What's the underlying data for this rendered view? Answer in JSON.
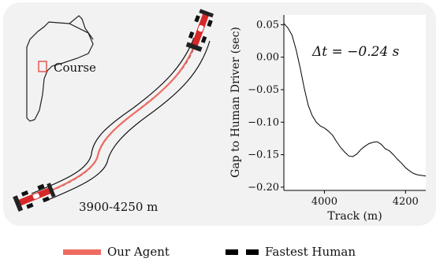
{
  "track_panel": {
    "course_label": "Course",
    "segment_label": "3900-4250 m"
  },
  "legend": {
    "agent_label": "Our Agent",
    "human_label": "Fastest Human",
    "agent_color": "#ef6b62",
    "human_color": "#000000"
  },
  "chart_data": {
    "type": "line",
    "xlabel": "Track (m)",
    "ylabel": "Gap to Human Driver (sec)",
    "annotation": "Δt = −0.24 s",
    "xlim": [
      3900,
      4250
    ],
    "ylim": [
      -0.205,
      0.065
    ],
    "xticks": [
      4000,
      4200
    ],
    "yticks": [
      0.05,
      0.0,
      -0.05,
      -0.1,
      -0.15,
      -0.2
    ],
    "ytick_labels": [
      "0.05",
      "0.00",
      "−0.05",
      "−0.10",
      "−0.15",
      "−0.20"
    ],
    "grid": false,
    "color": "#000000",
    "series": [
      {
        "x": [
          3900,
          3910,
          3920,
          3930,
          3940,
          3950,
          3960,
          3970,
          3980,
          3990,
          4000,
          4010,
          4020,
          4030,
          4040,
          4050,
          4060,
          4070,
          4080,
          4090,
          4100,
          4110,
          4120,
          4130,
          4140,
          4150,
          4160,
          4170,
          4180,
          4190,
          4200,
          4210,
          4220,
          4230,
          4240,
          4250
        ],
        "y": [
          0.052,
          0.045,
          0.034,
          0.012,
          -0.016,
          -0.047,
          -0.074,
          -0.09,
          -0.1,
          -0.106,
          -0.109,
          -0.114,
          -0.12,
          -0.13,
          -0.139,
          -0.146,
          -0.152,
          -0.153,
          -0.149,
          -0.142,
          -0.137,
          -0.133,
          -0.131,
          -0.13,
          -0.134,
          -0.141,
          -0.144,
          -0.15,
          -0.157,
          -0.163,
          -0.17,
          -0.175,
          -0.179,
          -0.181,
          -0.182,
          -0.183
        ]
      }
    ]
  }
}
